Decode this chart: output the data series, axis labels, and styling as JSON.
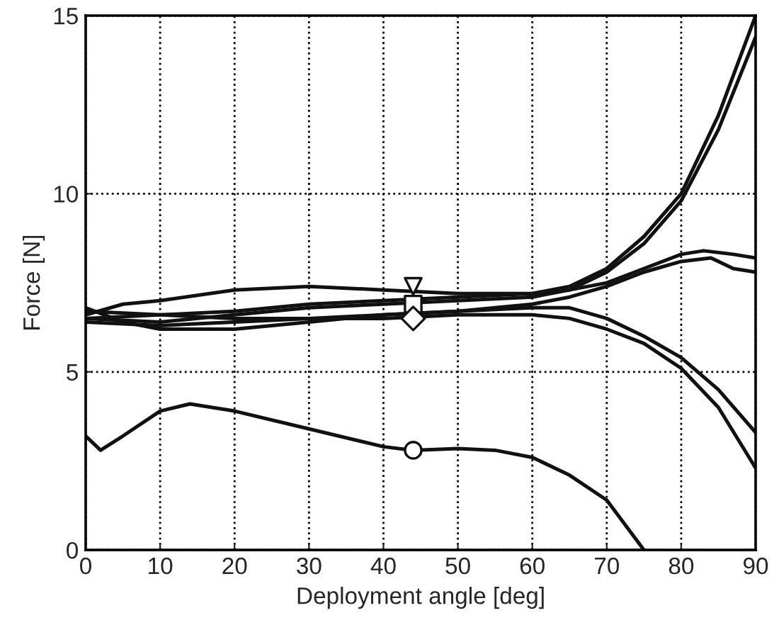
{
  "chart_data": {
    "type": "line",
    "xlabel": "Deployment angle [deg]",
    "ylabel": "Force [N]",
    "xlim": [
      0,
      90
    ],
    "ylim": [
      0,
      15
    ],
    "xticks": [
      0,
      10,
      20,
      30,
      40,
      50,
      60,
      70,
      80,
      90
    ],
    "yticks": [
      0,
      5,
      10,
      15
    ],
    "grid": true,
    "series": [
      {
        "color": "#111111",
        "x": [
          0,
          10,
          20,
          30,
          40,
          50,
          60,
          65,
          70,
          75,
          80,
          85,
          90
        ],
        "values": [
          6.7,
          6.6,
          6.7,
          6.9,
          7.0,
          7.1,
          7.2,
          7.4,
          7.9,
          8.8,
          10.0,
          12.2,
          15.0
        ]
      },
      {
        "color": "#111111",
        "x": [
          0,
          10,
          20,
          30,
          40,
          50,
          60,
          65,
          70,
          75,
          80,
          85,
          90
        ],
        "values": [
          6.5,
          6.4,
          6.6,
          6.8,
          6.9,
          7.0,
          7.1,
          7.3,
          7.8,
          8.6,
          9.8,
          11.8,
          14.4
        ]
      },
      {
        "color": "#111111",
        "x": [
          0,
          5,
          10,
          20,
          30,
          40,
          50,
          60,
          65,
          70,
          75,
          80,
          83,
          87,
          90
        ],
        "values": [
          6.6,
          6.9,
          7.0,
          7.3,
          7.4,
          7.3,
          7.2,
          7.2,
          7.3,
          7.5,
          7.9,
          8.3,
          8.4,
          8.3,
          8.2
        ]
      },
      {
        "color": "#111111",
        "x": [
          0,
          5,
          10,
          20,
          30,
          40,
          50,
          60,
          65,
          70,
          75,
          80,
          84,
          87,
          90
        ],
        "values": [
          6.8,
          6.4,
          6.2,
          6.2,
          6.4,
          6.6,
          6.7,
          6.9,
          7.1,
          7.4,
          7.8,
          8.1,
          8.2,
          7.9,
          7.8
        ]
      },
      {
        "color": "#111111",
        "x": [
          0,
          10,
          20,
          30,
          40,
          50,
          60,
          65,
          70,
          75,
          80,
          85,
          90
        ],
        "values": [
          6.5,
          6.6,
          6.5,
          6.5,
          6.5,
          6.6,
          6.6,
          6.5,
          6.2,
          5.8,
          5.1,
          4.0,
          2.3
        ]
      },
      {
        "color": "#111111",
        "x": [
          0,
          10,
          20,
          30,
          40,
          50,
          60,
          65,
          70,
          75,
          80,
          85,
          90
        ],
        "values": [
          6.4,
          6.3,
          6.4,
          6.5,
          6.6,
          6.7,
          6.8,
          6.8,
          6.5,
          6.0,
          5.4,
          4.5,
          3.3
        ]
      },
      {
        "color": "#111111",
        "x": [
          0,
          2,
          5,
          10,
          14,
          20,
          30,
          40,
          44,
          50,
          55,
          60,
          65,
          70,
          75
        ],
        "values": [
          3.2,
          2.8,
          3.2,
          3.9,
          4.1,
          3.9,
          3.4,
          2.9,
          2.8,
          2.85,
          2.8,
          2.6,
          2.1,
          1.4,
          0.0
        ]
      },
      {
        "type": "scatter",
        "marker": "triangle",
        "color": "#111111",
        "x": [
          44
        ],
        "values": [
          7.4
        ]
      },
      {
        "type": "scatter",
        "marker": "square",
        "color": "#111111",
        "x": [
          44
        ],
        "values": [
          6.9
        ]
      },
      {
        "type": "scatter",
        "marker": "diamond",
        "color": "#111111",
        "x": [
          44
        ],
        "values": [
          6.5
        ]
      },
      {
        "type": "scatter",
        "marker": "circle",
        "color": "#111111",
        "x": [
          44
        ],
        "values": [
          2.8
        ]
      }
    ]
  }
}
